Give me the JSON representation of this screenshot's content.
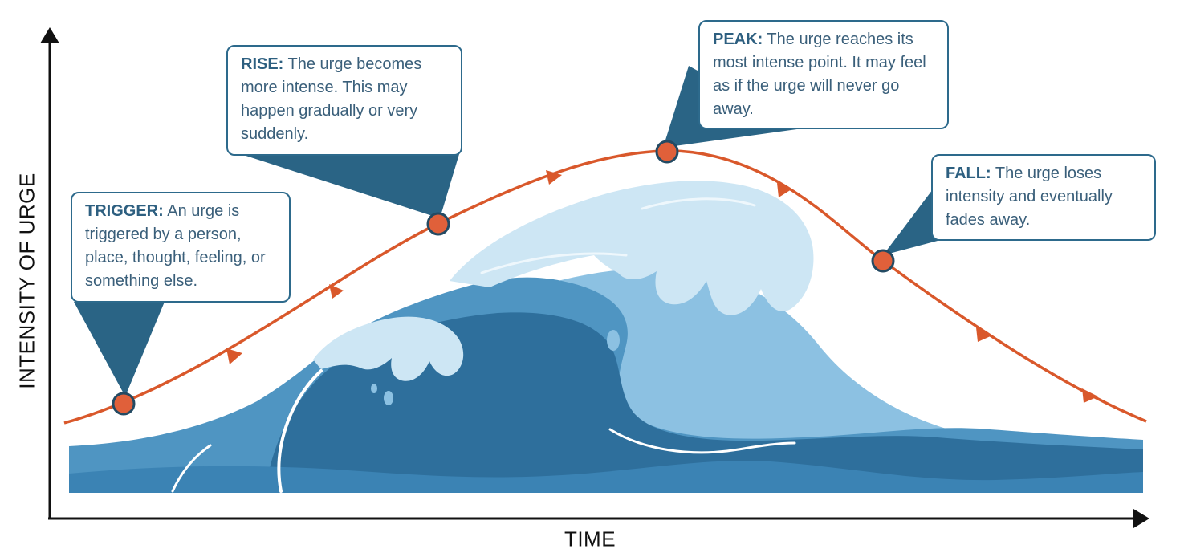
{
  "axes": {
    "y_label": "INTENSITY OF URGE",
    "x_label": "TIME"
  },
  "stages": [
    {
      "id": "trigger",
      "lead": "TRIGGER:",
      "text": " An urge is triggered by a person, place, thought, feeling, or something else."
    },
    {
      "id": "rise",
      "lead": "RISE:",
      "text": " The urge becomes more intense. This may happen gradually or very suddenly."
    },
    {
      "id": "peak",
      "lead": "PEAK:",
      "text": " The urge reaches its most intense point. It may feel as if the urge will never go away."
    },
    {
      "id": "fall",
      "lead": "FALL:",
      "text": " The urge loses intensity and eventually fades away."
    }
  ],
  "colors": {
    "curve": "#d9582b",
    "node_fill": "#e0603a",
    "node_stroke": "#234a63",
    "pointer": "#2a6485",
    "callout_border": "#2d6a8c",
    "wave_dark": "#2e6f9c",
    "wave_mid": "#4f95c2",
    "wave_light": "#8cc1e2",
    "wave_foam": "#cde6f4"
  }
}
